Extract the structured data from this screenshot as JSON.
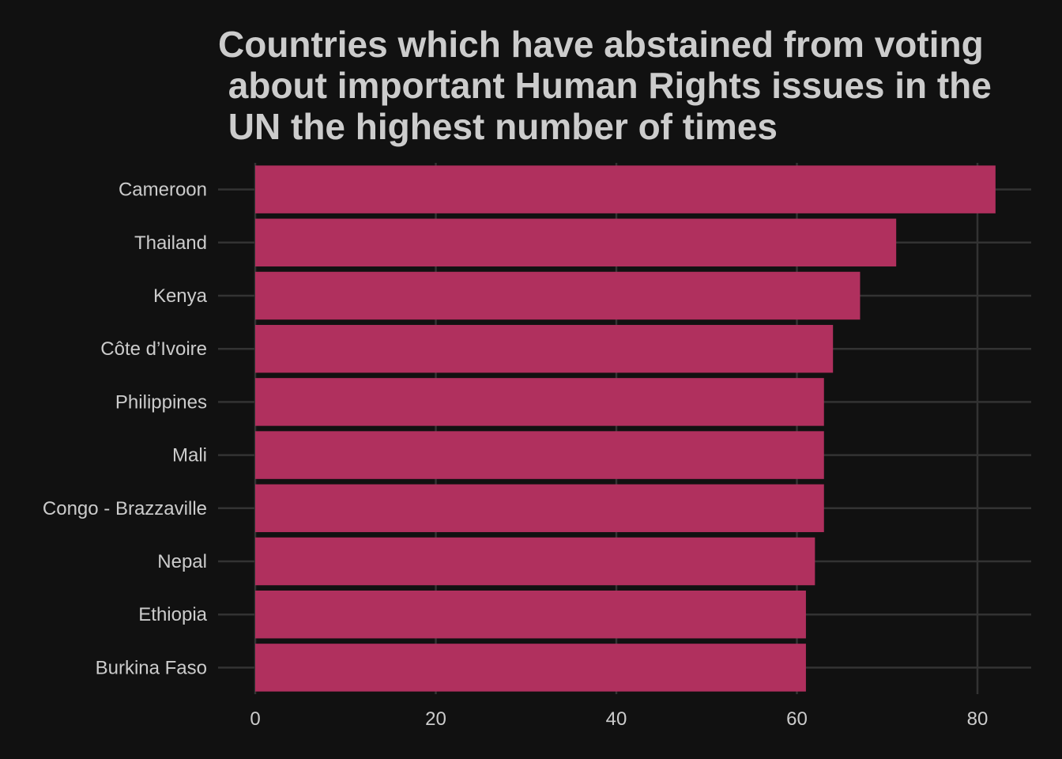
{
  "chart_data": {
    "type": "bar",
    "orientation": "horizontal",
    "title": "Countries which have abstained from voting\n about important Human Rights issues in the\n UN the highest number of times",
    "xlabel": "",
    "ylabel": "",
    "categories": [
      "Cameroon",
      "Thailand",
      "Kenya",
      "Côte d’Ivoire",
      "Philippines",
      "Mali",
      "Congo - Brazzaville",
      "Nepal",
      "Ethiopia",
      "Burkina Faso"
    ],
    "values": [
      82,
      71,
      67,
      64,
      63,
      63,
      63,
      62,
      61,
      61
    ],
    "xlim": [
      0,
      86
    ],
    "xticks": [
      0,
      20,
      40,
      60,
      80
    ],
    "grid": true,
    "legend": "none"
  },
  "colors": {
    "background": "#111111",
    "bar": "#b0305e",
    "grid": "#333333",
    "text": "#cccccc"
  }
}
